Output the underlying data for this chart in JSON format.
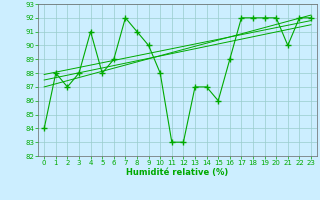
{
  "x": [
    0,
    1,
    2,
    3,
    4,
    5,
    6,
    7,
    8,
    9,
    10,
    11,
    12,
    13,
    14,
    15,
    16,
    17,
    18,
    19,
    20,
    21,
    22,
    23
  ],
  "y_main": [
    84,
    88,
    87,
    88,
    91,
    88,
    89,
    92,
    91,
    90,
    88,
    83,
    83,
    87,
    87,
    86,
    89,
    92,
    92,
    92,
    92,
    90,
    92,
    92
  ],
  "trend_lines": [
    [
      0,
      23,
      87.5,
      91.5
    ],
    [
      0,
      23,
      87.0,
      92.2
    ],
    [
      0,
      23,
      87.9,
      91.8
    ]
  ],
  "bg_color": "#cceeff",
  "grid_color": "#99cccc",
  "line_color": "#00aa00",
  "xlabel": "Humidité relative (%)",
  "ylim": [
    82,
    93
  ],
  "xlim_min": -0.5,
  "xlim_max": 23.5,
  "yticks": [
    82,
    83,
    84,
    85,
    86,
    87,
    88,
    89,
    90,
    91,
    92,
    93
  ],
  "xticks": [
    0,
    1,
    2,
    3,
    4,
    5,
    6,
    7,
    8,
    9,
    10,
    11,
    12,
    13,
    14,
    15,
    16,
    17,
    18,
    19,
    20,
    21,
    22,
    23
  ],
  "tick_fontsize": 5.0,
  "xlabel_fontsize": 6.0
}
